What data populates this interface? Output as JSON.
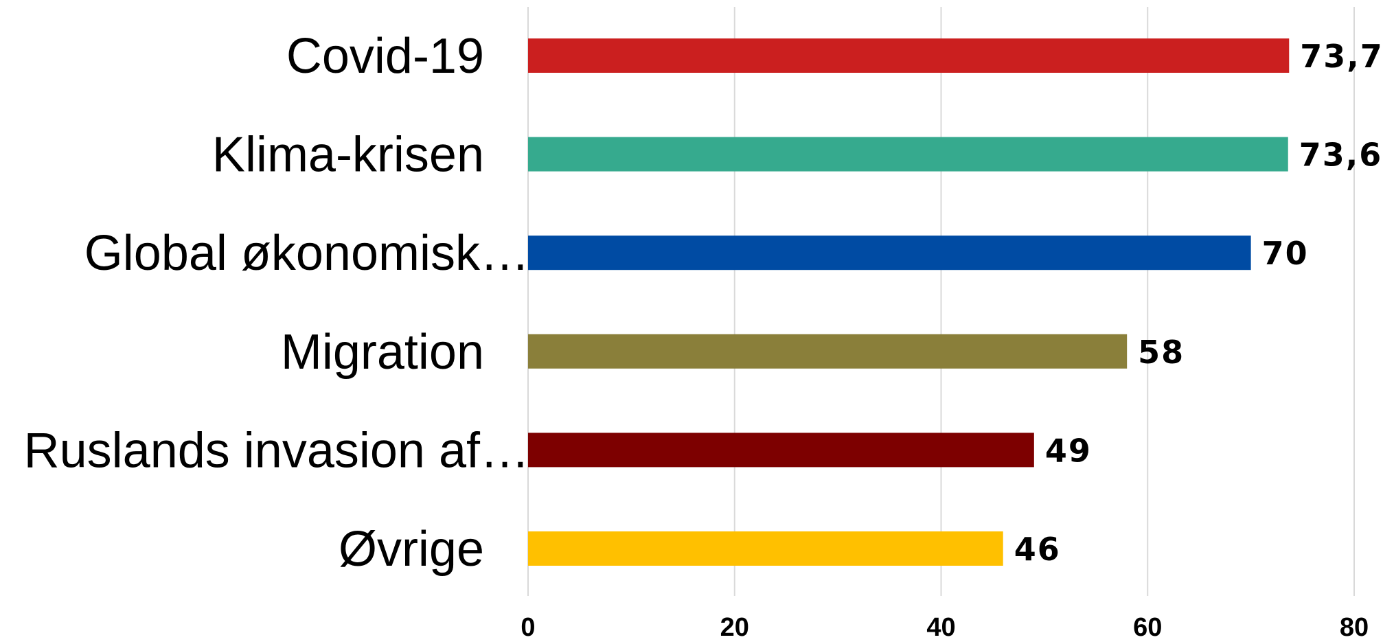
{
  "chart_data": {
    "type": "bar",
    "orientation": "horizontal",
    "title": "",
    "xlabel": "",
    "ylabel": "",
    "categories": [
      "Covid-19",
      "Klima-krisen",
      "Global økonomisk…",
      "Migration",
      "Ruslands invasion af…",
      "Øvrige"
    ],
    "values": [
      73.7,
      73.6,
      70,
      58,
      49,
      46
    ],
    "value_labels": [
      "73,7",
      "73,6",
      "70",
      "58",
      "49",
      "46"
    ],
    "colors": [
      "#cb1f1f",
      "#36aa8e",
      "#004ba3",
      "#8a7f3a",
      "#7d0000",
      "#ffc000"
    ],
    "xlim": [
      0,
      80
    ],
    "xticks": [
      0,
      20,
      40,
      60,
      80
    ],
    "xtick_labels": [
      "0",
      "20",
      "40",
      "60",
      "80"
    ],
    "grid": true,
    "legend": "none"
  }
}
